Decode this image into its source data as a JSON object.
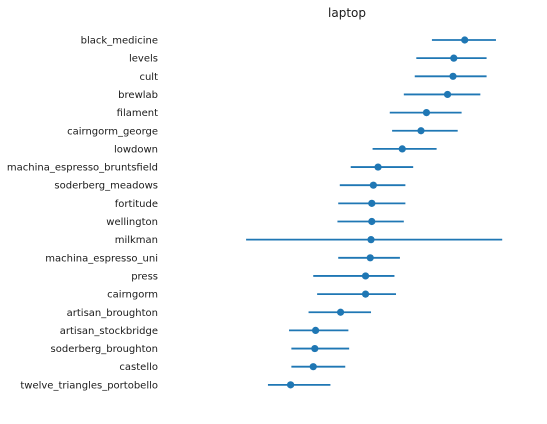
{
  "chart_data": {
    "type": "scatter",
    "title": "laptop",
    "xlabel": "",
    "ylabel": "",
    "xlim": [
      -0.9,
      1.45
    ],
    "grid": false,
    "legend": "none",
    "colors": {
      "point": "#1f77b4",
      "interval": "#1f77b4"
    },
    "categories": [
      "black_medicine",
      "levels",
      "cult",
      "brewlab",
      "filament",
      "cairngorm_george",
      "lowdown",
      "machina_espresso_bruntsfield",
      "soderberg_meadows",
      "fortitude",
      "wellington",
      "milkman",
      "machina_espresso_uni",
      "press",
      "cairngorm",
      "artisan_broughton",
      "artisan_stockbridge",
      "soderberg_broughton",
      "castello",
      "twelve_triangles_portobello"
    ],
    "points": [
      {
        "value": 1.0,
        "low": 0.79,
        "high": 1.2
      },
      {
        "value": 0.93,
        "low": 0.69,
        "high": 1.14
      },
      {
        "value": 0.925,
        "low": 0.68,
        "high": 1.14
      },
      {
        "value": 0.89,
        "low": 0.61,
        "high": 1.1
      },
      {
        "value": 0.755,
        "low": 0.52,
        "high": 0.98
      },
      {
        "value": 0.72,
        "low": 0.535,
        "high": 0.955
      },
      {
        "value": 0.6,
        "low": 0.41,
        "high": 0.82
      },
      {
        "value": 0.445,
        "low": 0.27,
        "high": 0.67
      },
      {
        "value": 0.415,
        "low": 0.2,
        "high": 0.62
      },
      {
        "value": 0.405,
        "low": 0.19,
        "high": 0.62
      },
      {
        "value": 0.405,
        "low": 0.185,
        "high": 0.61
      },
      {
        "value": 0.4,
        "low": -0.4,
        "high": 1.24
      },
      {
        "value": 0.395,
        "low": 0.19,
        "high": 0.585
      },
      {
        "value": 0.365,
        "low": 0.03,
        "high": 0.55
      },
      {
        "value": 0.365,
        "low": 0.055,
        "high": 0.56
      },
      {
        "value": 0.205,
        "low": 0.0,
        "high": 0.4
      },
      {
        "value": 0.045,
        "low": -0.125,
        "high": 0.255
      },
      {
        "value": 0.04,
        "low": -0.11,
        "high": 0.26
      },
      {
        "value": 0.03,
        "low": -0.11,
        "high": 0.235
      },
      {
        "value": -0.115,
        "low": -0.26,
        "high": 0.14
      }
    ]
  }
}
